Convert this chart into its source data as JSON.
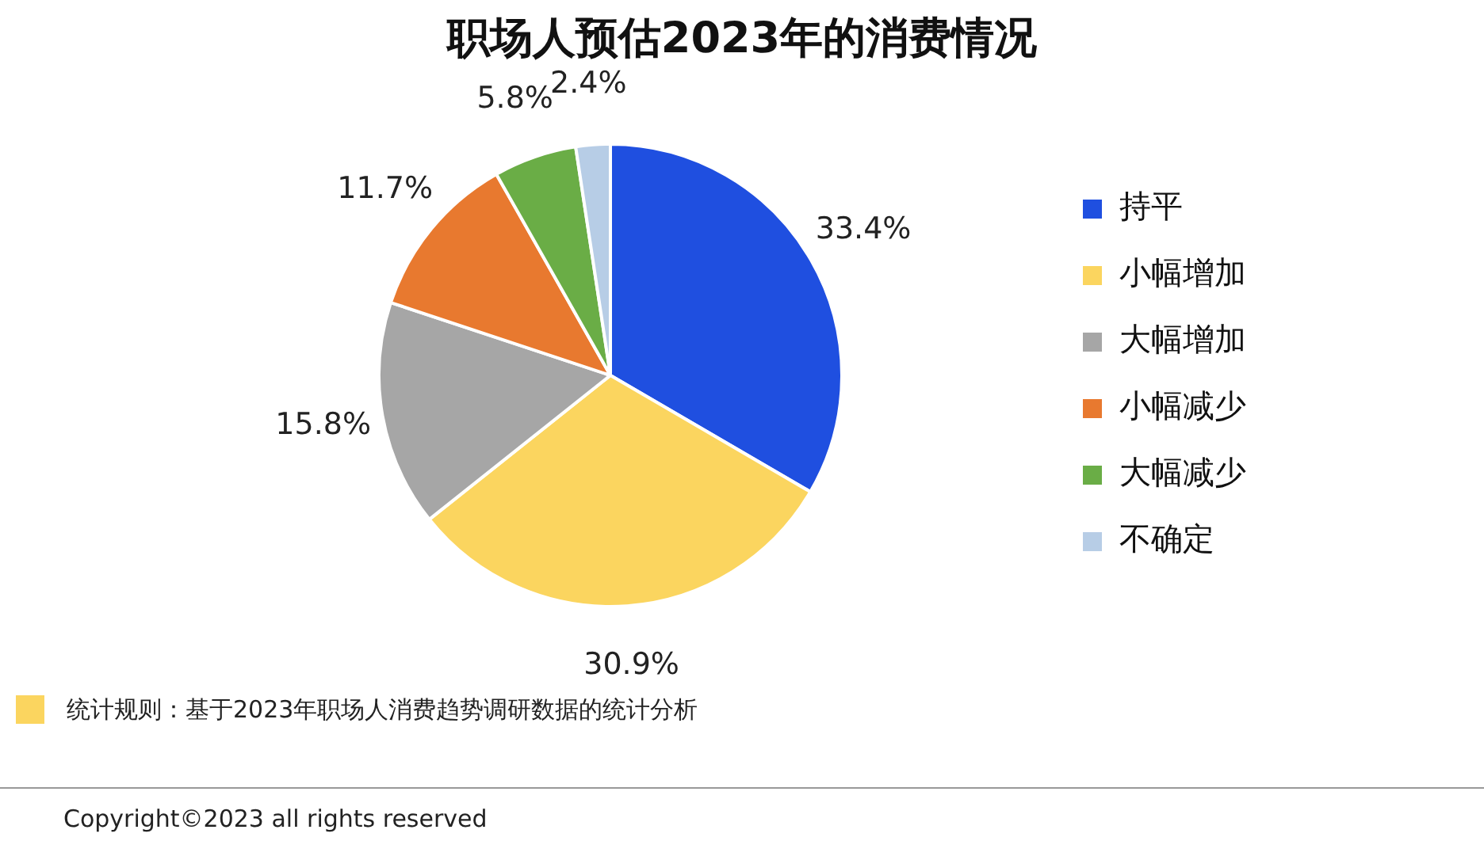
{
  "chart_data": {
    "type": "pie",
    "title": "职场人预估2023年的消费情况",
    "categories": [
      "持平",
      "小幅增加",
      "大幅增加",
      "小幅减少",
      "大幅减少",
      "不确定"
    ],
    "values": [
      33.4,
      30.9,
      15.8,
      11.7,
      5.8,
      2.4
    ],
    "colors": [
      "#1f4fe0",
      "#fbd55f",
      "#a6a6a6",
      "#e8792f",
      "#6aad46",
      "#b7cde6"
    ],
    "value_labels": [
      "33.4%",
      "30.9%",
      "15.8%",
      "11.7%",
      "5.8%",
      "2.4%"
    ],
    "legend": "right",
    "annotations": [
      "统计规则：基于2023年职场人消费趋势调研数据的统计分析",
      "Copyright©2023 all rights reserved"
    ]
  }
}
